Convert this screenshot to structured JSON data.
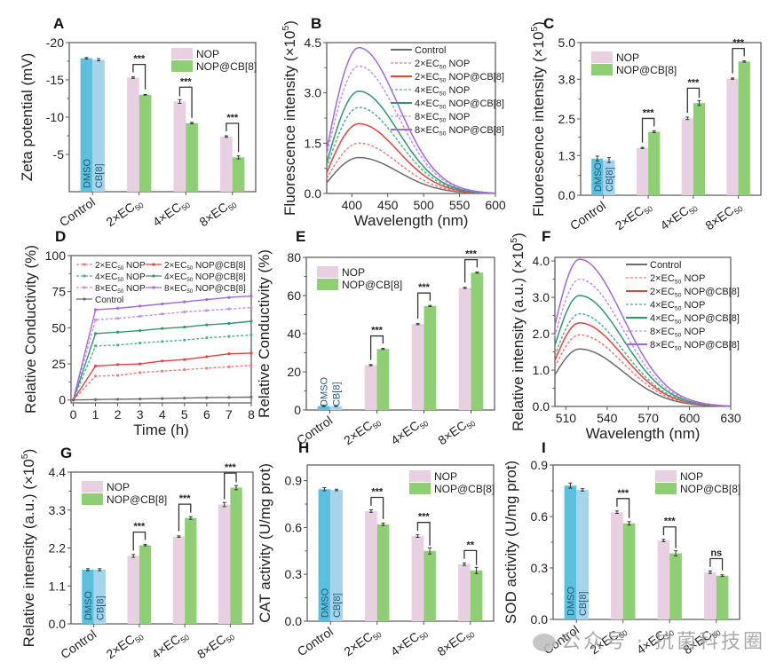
{
  "figure": {
    "watermark": "公众号 · 抗菌科技圈",
    "watermark_icon": "wechat-icon"
  },
  "chart_data": [
    {
      "panel": "A",
      "type": "bar",
      "ylabel": "Zeta potential (mV)",
      "xlabel": "",
      "ylim": [
        0,
        -20
      ],
      "yticks": [
        -5,
        -10,
        -15,
        -20
      ],
      "ytick_labels": [
        "-5",
        "-10",
        "-15",
        "-20"
      ],
      "categories": [
        "Control",
        "2×EC50",
        "4×EC50",
        "8×EC50"
      ],
      "control": [
        {
          "name": "DMSO",
          "value": -17.9,
          "err": 0.1
        },
        {
          "name": "CB[8]",
          "value": -17.7,
          "err": 0.15
        }
      ],
      "series": [
        {
          "name": "NOP",
          "values": [
            -15.3,
            -12.1,
            -7.4
          ],
          "err": [
            0.1,
            0.25,
            0.1
          ]
        },
        {
          "name": "NOP@CB[8]",
          "values": [
            -13.0,
            -9.2,
            -4.6
          ],
          "err": [
            0.05,
            0.1,
            0.2
          ]
        }
      ],
      "significance": [
        "***",
        "***",
        "***"
      ],
      "legend": "top-right"
    },
    {
      "panel": "B",
      "type": "line",
      "ylabel": "Fluorescence intensity (×10^5)",
      "xlabel": "Wavelength (nm)",
      "xlim": [
        365,
        600
      ],
      "ylim": [
        0,
        4.5
      ],
      "xticks": [
        400,
        450,
        500,
        550,
        600
      ],
      "yticks": [
        0.0,
        1.5,
        3.0,
        4.5
      ],
      "ytick_labels": [
        "0.0",
        "1.5",
        "3.0",
        "4.5"
      ],
      "peak_wavelength": 410,
      "start_fraction": 0.3,
      "series": [
        {
          "name": "Control",
          "peak": 1.07,
          "color": "#6b6b6b",
          "dash": false
        },
        {
          "name": "2×EC50 NOP",
          "peak": 1.5,
          "color": "#f07a7a",
          "dash": true
        },
        {
          "name": "2×EC50 NOP@CB[8]",
          "peak": 2.08,
          "color": "#e8403c",
          "dash": false
        },
        {
          "name": "4×EC50 NOP",
          "peak": 2.57,
          "color": "#4fb08a",
          "dash": true
        },
        {
          "name": "4×EC50 NOP@CB[8]",
          "peak": 3.05,
          "color": "#2a9a6c",
          "dash": false
        },
        {
          "name": "8×EC50 NOP",
          "peak": 3.8,
          "color": "#c490e8",
          "dash": true
        },
        {
          "name": "8×EC50 NOP@CB[8]",
          "peak": 4.35,
          "color": "#a467e0",
          "dash": false
        }
      ],
      "legend": "top-right"
    },
    {
      "panel": "C",
      "type": "bar",
      "ylabel": "Fluorescence intensity (×10^5)",
      "xlabel": "",
      "ylim": [
        0,
        5.0
      ],
      "yticks": [
        0.0,
        1.3,
        2.5,
        3.8,
        5.0
      ],
      "ytick_labels": [
        "0.0",
        "1.3",
        "2.5",
        "3.8",
        "5.0"
      ],
      "categories": [
        "Control",
        "2×EC50",
        "4×EC50",
        "8×EC50"
      ],
      "control": [
        {
          "name": "DMSO",
          "value": 1.2,
          "err": 0.08
        },
        {
          "name": "CB[8]",
          "value": 1.15,
          "err": 0.08
        }
      ],
      "series": [
        {
          "name": "NOP",
          "values": [
            1.55,
            2.52,
            3.82
          ],
          "err": [
            0.02,
            0.04,
            0.02
          ]
        },
        {
          "name": "NOP@CB[8]",
          "values": [
            2.08,
            3.02,
            4.38
          ],
          "err": [
            0.03,
            0.08,
            0.02
          ]
        }
      ],
      "significance": [
        "***",
        "***",
        "***"
      ],
      "legend": "top-left"
    },
    {
      "panel": "D",
      "type": "line",
      "ylabel": "Relative Conductivity (%)",
      "xlabel": "Time (h)",
      "xlim": [
        -0.1,
        8
      ],
      "ylim": [
        -2,
        100
      ],
      "xticks": [
        0,
        1,
        2,
        3,
        4,
        5,
        6,
        7,
        8
      ],
      "yticks": [
        0,
        25,
        50,
        75,
        100
      ],
      "x": [
        0,
        1,
        2,
        3,
        4,
        5,
        6,
        7,
        8
      ],
      "series": [
        {
          "name": "2×EC50 NOP",
          "values": [
            0,
            16.5,
            17,
            19,
            20,
            21,
            22,
            23,
            24
          ],
          "color": "#f07a7a",
          "dash": true
        },
        {
          "name": "2×EC50 NOP@CB[8]",
          "values": [
            0,
            23.5,
            24.5,
            25,
            27,
            28,
            30,
            32,
            32.5
          ],
          "color": "#e8403c",
          "dash": false
        },
        {
          "name": "4×EC50 NOP",
          "values": [
            0,
            37.5,
            38,
            39.5,
            40.5,
            41.5,
            43,
            44,
            45
          ],
          "color": "#4fb08a",
          "dash": true
        },
        {
          "name": "4×EC50 NOP@CB[8]",
          "values": [
            0,
            46,
            47,
            48,
            49.5,
            50.5,
            52,
            53,
            54.5
          ],
          "color": "#2a9a6c",
          "dash": false
        },
        {
          "name": "8×EC50 NOP",
          "values": [
            0,
            55.5,
            56.5,
            58,
            59.5,
            61,
            62,
            63,
            64
          ],
          "color": "#c490e8",
          "dash": true
        },
        {
          "name": "8×EC50 NOP@CB[8]",
          "values": [
            0,
            62.5,
            63.5,
            65,
            66.5,
            68,
            69.5,
            71,
            72
          ],
          "color": "#a467e0",
          "dash": false
        },
        {
          "name": "Control",
          "values": [
            0,
            0.3,
            0.5,
            0.7,
            1,
            1.3,
            1.6,
            1.8,
            2
          ],
          "color": "#6b6b6b",
          "dash": false
        }
      ],
      "legend": "top-left, two columns"
    },
    {
      "panel": "E",
      "type": "bar",
      "ylabel": "Relative Conductivity (%)",
      "xlabel": "",
      "ylim": [
        0,
        80
      ],
      "yticks": [
        0,
        20,
        40,
        60,
        80
      ],
      "ytick_labels": [
        "0",
        "20",
        "40",
        "60",
        "80"
      ],
      "categories": [
        "Control",
        "2×EC50",
        "4×EC50",
        "8×EC50"
      ],
      "control": [
        {
          "name": "DMSO",
          "value": 2,
          "err": 0.2
        },
        {
          "name": "CB[8]",
          "value": 2,
          "err": 0.2
        }
      ],
      "series": [
        {
          "name": "NOP",
          "values": [
            23.5,
            45,
            64
          ],
          "err": [
            0.3,
            0.3,
            0.3
          ]
        },
        {
          "name": "NOP@CB[8]",
          "values": [
            32,
            54.5,
            72
          ],
          "err": [
            0.3,
            0.3,
            0.3
          ]
        }
      ],
      "significance": [
        "***",
        "***",
        "***"
      ],
      "legend": "top-left"
    },
    {
      "panel": "F",
      "type": "line",
      "ylabel": "Relative intensity (a.u.) (×10^5)",
      "xlabel": "Wavelength (nm)",
      "xlim": [
        502,
        630
      ],
      "ylim": [
        0,
        4.1
      ],
      "xticks": [
        510,
        540,
        570,
        600,
        630
      ],
      "yticks": [
        0.0,
        1.0,
        2.0,
        3.0,
        4.0
      ],
      "ytick_labels": [
        "0.0",
        "1.0",
        "2.0",
        "3.0",
        "4.0"
      ],
      "peak_wavelength": 520,
      "start_fraction": 0.55,
      "series": [
        {
          "name": "Control",
          "peak": 1.58,
          "color": "#6b6b6b",
          "dash": false
        },
        {
          "name": "2×EC50 NOP",
          "peak": 1.97,
          "color": "#f07a7a",
          "dash": true
        },
        {
          "name": "2×EC50 NOP@CB[8]",
          "peak": 2.3,
          "color": "#e8403c",
          "dash": false
        },
        {
          "name": "4×EC50 NOP",
          "peak": 2.55,
          "color": "#4fb08a",
          "dash": true
        },
        {
          "name": "4×EC50 NOP@CB[8]",
          "peak": 3.05,
          "color": "#2a9a6c",
          "dash": false
        },
        {
          "name": "8×EC50 NOP",
          "peak": 3.5,
          "color": "#c490e8",
          "dash": true
        },
        {
          "name": "8×EC50 NOP@CB[8]",
          "peak": 4.05,
          "color": "#a467e0",
          "dash": false
        }
      ],
      "legend": "top-right"
    },
    {
      "panel": "G",
      "type": "bar",
      "ylabel": "Relative intensity (a.u.) (×10^5)",
      "xlabel": "",
      "ylim": [
        0,
        4.4
      ],
      "yticks": [
        0.0,
        1.1,
        2.2,
        3.3,
        4.4
      ],
      "ytick_labels": [
        "0.0",
        "1.1",
        "2.2",
        "3.3",
        "4.4"
      ],
      "categories": [
        "Control",
        "2×EC50",
        "4×EC50",
        "8×EC50"
      ],
      "control": [
        {
          "name": "DMSO",
          "value": 1.57,
          "err": 0.03
        },
        {
          "name": "CB[8]",
          "value": 1.57,
          "err": 0.03
        }
      ],
      "series": [
        {
          "name": "NOP",
          "values": [
            1.97,
            2.53,
            3.46
          ],
          "err": [
            0.04,
            0.02,
            0.06
          ]
        },
        {
          "name": "NOP@CB[8]",
          "values": [
            2.28,
            3.07,
            3.95
          ],
          "err": [
            0.02,
            0.04,
            0.06
          ]
        }
      ],
      "significance": [
        "***",
        "***",
        "***"
      ],
      "legend": "top-left"
    },
    {
      "panel": "H",
      "type": "bar",
      "ylabel": "CAT activity (U/mg prot)",
      "xlabel": "",
      "ylim": [
        0,
        1.0
      ],
      "yticks": [
        0.0,
        0.3,
        0.6,
        0.9
      ],
      "ytick_labels": [
        "0.0",
        "0.3",
        "0.6",
        "0.9"
      ],
      "categories": [
        "Control",
        "2×EC50",
        "4×EC50",
        "8×EC50"
      ],
      "control": [
        {
          "name": "DMSO",
          "value": 0.845,
          "err": 0.01
        },
        {
          "name": "CB[8]",
          "value": 0.84,
          "err": 0.005
        }
      ],
      "series": [
        {
          "name": "NOP",
          "values": [
            0.705,
            0.545,
            0.365
          ],
          "err": [
            0.008,
            0.008,
            0.008
          ]
        },
        {
          "name": "NOP@CB[8]",
          "values": [
            0.62,
            0.45,
            0.325
          ],
          "err": [
            0.008,
            0.02,
            0.02
          ]
        }
      ],
      "significance": [
        "***",
        "***",
        "**"
      ],
      "legend": "top-right"
    },
    {
      "panel": "I",
      "type": "bar",
      "ylabel": "SOD activity (U/mg prot)",
      "xlabel": "",
      "ylim": [
        0,
        0.9
      ],
      "yticks": [
        0.0,
        0.3,
        0.6,
        0.9
      ],
      "ytick_labels": [
        "0.0",
        "0.3",
        "0.6",
        "0.9"
      ],
      "categories": [
        "Control",
        "2×EC50",
        "4×EC50",
        "8×EC50"
      ],
      "control": [
        {
          "name": "DMSO",
          "value": 0.78,
          "err": 0.015
        },
        {
          "name": "CB[8]",
          "value": 0.755,
          "err": 0.007
        }
      ],
      "series": [
        {
          "name": "NOP",
          "values": [
            0.625,
            0.46,
            0.275
          ],
          "err": [
            0.007,
            0.007,
            0.007
          ]
        },
        {
          "name": "NOP@CB[8]",
          "values": [
            0.56,
            0.385,
            0.255
          ],
          "err": [
            0.01,
            0.015,
            0.005
          ]
        }
      ],
      "significance": [
        "***",
        "***",
        "ns"
      ],
      "legend": "top-right"
    }
  ],
  "colors": {
    "dmso": "#5bc0de",
    "cb8": "#a6d4ec",
    "nop": "#e8cfe2",
    "nop_cb8": "#8fcf74",
    "axis": "#555555",
    "text": "#222222"
  }
}
